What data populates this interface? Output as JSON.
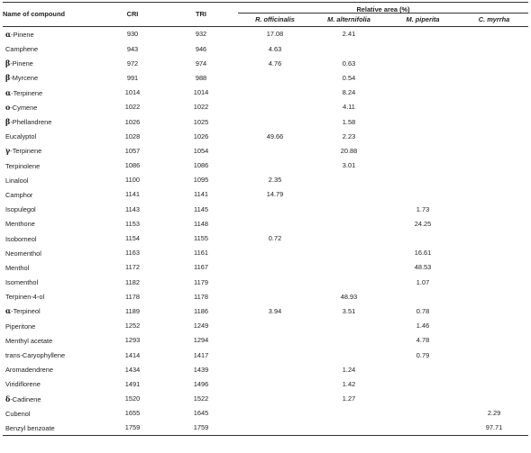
{
  "header": {
    "name_label": "Name of compound",
    "cri_label": "CRI",
    "tri_label": "TRI",
    "relative_area_label": "Relative area (%)",
    "species": [
      "R. officinalis",
      "M. alternifolia",
      "M. piperita",
      "C. myrrha"
    ]
  },
  "rows": [
    {
      "prefix": "α",
      "name": "-Pinene",
      "cri": "930",
      "tri": "932",
      "ro": "17.08",
      "ma": "2.41",
      "mp": "",
      "cm": ""
    },
    {
      "prefix": "",
      "name": "Camphene",
      "cri": "943",
      "tri": "946",
      "ro": "4.63",
      "ma": "",
      "mp": "",
      "cm": ""
    },
    {
      "prefix": "β",
      "name": "-Pinene",
      "cri": "972",
      "tri": "974",
      "ro": "4.76",
      "ma": "0.63",
      "mp": "",
      "cm": ""
    },
    {
      "prefix": "β",
      "name": "-Myrcene",
      "cri": "991",
      "tri": "988",
      "ro": "",
      "ma": "0.54",
      "mp": "",
      "cm": ""
    },
    {
      "prefix": "α",
      "name": "-Terpinene",
      "cri": "1014",
      "tri": "1014",
      "ro": "",
      "ma": "8.24",
      "mp": "",
      "cm": ""
    },
    {
      "prefix": "o",
      "name": "-Cymene",
      "cri": "1022",
      "tri": "1022",
      "ro": "",
      "ma": "4.11",
      "mp": "",
      "cm": ""
    },
    {
      "prefix": "β",
      "name": "-Phellandrene",
      "cri": "1026",
      "tri": "1025",
      "ro": "",
      "ma": "1.58",
      "mp": "",
      "cm": ""
    },
    {
      "prefix": "",
      "name": "Eucalyptol",
      "cri": "1028",
      "tri": "1026",
      "ro": "49.66",
      "ma": "2.23",
      "mp": "",
      "cm": ""
    },
    {
      "prefix": "γ",
      "name": "-Terpinene",
      "cri": "1057",
      "tri": "1054",
      "ro": "",
      "ma": "20.88",
      "mp": "",
      "cm": ""
    },
    {
      "prefix": "",
      "name": "Terpinolene",
      "cri": "1086",
      "tri": "1086",
      "ro": "",
      "ma": "3.01",
      "mp": "",
      "cm": ""
    },
    {
      "prefix": "",
      "name": "Linalool",
      "cri": "1100",
      "tri": "1095",
      "ro": "2.35",
      "ma": "",
      "mp": "",
      "cm": ""
    },
    {
      "prefix": "",
      "name": "Camphor",
      "cri": "1141",
      "tri": "1141",
      "ro": "14.79",
      "ma": "",
      "mp": "",
      "cm": ""
    },
    {
      "prefix": "",
      "name": "Isopulegol",
      "cri": "1143",
      "tri": "1145",
      "ro": "",
      "ma": "",
      "mp": "1.73",
      "cm": ""
    },
    {
      "prefix": "",
      "name": "Menthone",
      "cri": "1153",
      "tri": "1148",
      "ro": "",
      "ma": "",
      "mp": "24.25",
      "cm": ""
    },
    {
      "prefix": "",
      "name": "Isoborneol",
      "cri": "1154",
      "tri": "1155",
      "ro": "0.72",
      "ma": "",
      "mp": "",
      "cm": ""
    },
    {
      "prefix": "",
      "name": "Neomenthol",
      "cri": "1163",
      "tri": "1161",
      "ro": "",
      "ma": "",
      "mp": "16.61",
      "cm": ""
    },
    {
      "prefix": "",
      "name": "Menthol",
      "cri": "1172",
      "tri": "1167",
      "ro": "",
      "ma": "",
      "mp": "48.53",
      "cm": ""
    },
    {
      "prefix": "",
      "name": "Isomenthol",
      "cri": "1182",
      "tri": "1179",
      "ro": "",
      "ma": "",
      "mp": "1.07",
      "cm": ""
    },
    {
      "prefix": "",
      "name": "Terpinen-4-ol",
      "cri": "1178",
      "tri": "1178",
      "ro": "",
      "ma": "48.93",
      "mp": "",
      "cm": ""
    },
    {
      "prefix": "α",
      "name": "-Terpineol",
      "cri": "1189",
      "tri": "1186",
      "ro": "3.94",
      "ma": "3.51",
      "mp": "0.78",
      "cm": ""
    },
    {
      "prefix": "",
      "name": "Piperitone",
      "cri": "1252",
      "tri": "1249",
      "ro": "",
      "ma": "",
      "mp": "1.46",
      "cm": ""
    },
    {
      "prefix": "",
      "name": "Menthyl acetate",
      "cri": "1293",
      "tri": "1294",
      "ro": "",
      "ma": "",
      "mp": "4.78",
      "cm": ""
    },
    {
      "prefix": "",
      "name": "trans-Caryophyllene",
      "cri": "1414",
      "tri": "1417",
      "ro": "",
      "ma": "",
      "mp": "0.79",
      "cm": ""
    },
    {
      "prefix": "",
      "name": "Aromadendrene",
      "cri": "1434",
      "tri": "1439",
      "ro": "",
      "ma": "1.24",
      "mp": "",
      "cm": ""
    },
    {
      "prefix": "",
      "name": "Viridiflorene",
      "cri": "1491",
      "tri": "1496",
      "ro": "",
      "ma": "1.42",
      "mp": "",
      "cm": ""
    },
    {
      "prefix": "δ",
      "name": "-Cadinene",
      "cri": "1520",
      "tri": "1522",
      "ro": "",
      "ma": "1.27",
      "mp": "",
      "cm": ""
    },
    {
      "prefix": "",
      "name": "Cubenol",
      "cri": "1655",
      "tri": "1645",
      "ro": "",
      "ma": "",
      "mp": "",
      "cm": "2.29"
    },
    {
      "prefix": "",
      "name": "Benzyl benzoate",
      "cri": "1759",
      "tri": "1759",
      "ro": "",
      "ma": "",
      "mp": "",
      "cm": "97.71"
    }
  ]
}
